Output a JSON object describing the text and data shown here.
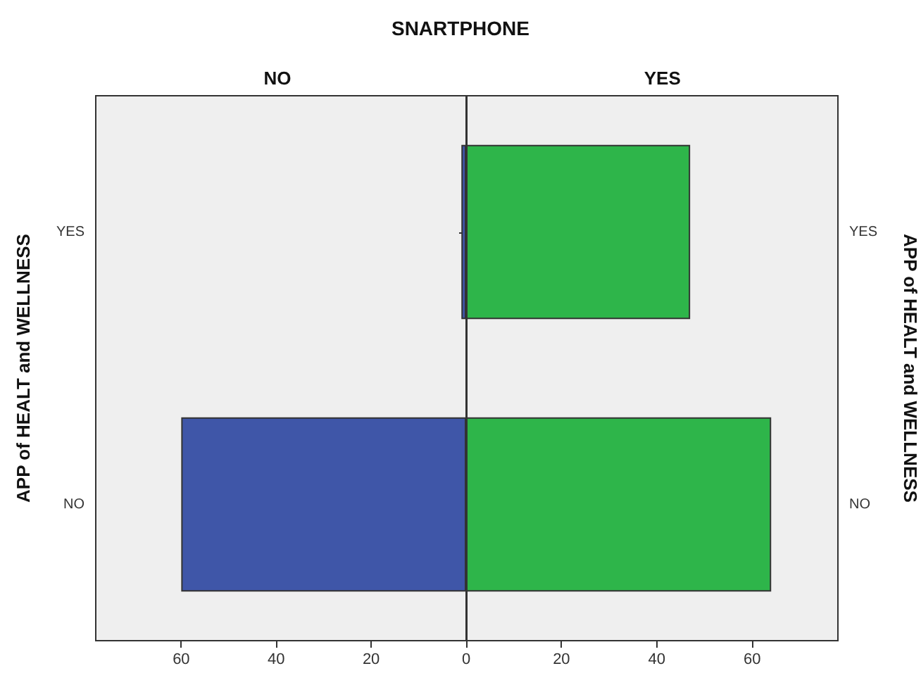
{
  "chart_data": [
    {
      "type": "bar",
      "orientation": "horizontal",
      "title": "SNARTPHONE",
      "subtitle": "NO",
      "ylabel": "APP of HEALT and WELLNESS",
      "categories": [
        "YES",
        "NO"
      ],
      "values": [
        1,
        60
      ],
      "color": "#3f56a8",
      "xlim": [
        78,
        0
      ],
      "xticks": [
        {
          "value": 0,
          "label": null
        },
        20,
        40,
        60
      ]
    },
    {
      "type": "bar",
      "orientation": "horizontal",
      "subtitle": "YES",
      "y2label": "APP of HEALT and WELLNESS",
      "categories": [
        "YES",
        "NO"
      ],
      "values": [
        47,
        64
      ],
      "color": "#2eb54a",
      "xlim": [
        0,
        78
      ],
      "xticks": [
        0,
        20,
        40,
        60
      ]
    }
  ]
}
